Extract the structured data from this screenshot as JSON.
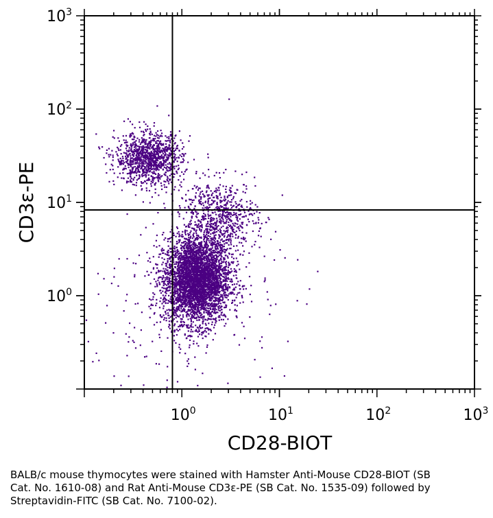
{
  "chart_data": {
    "type": "scatter",
    "title": "",
    "xlabel": "CD28-BIOT",
    "ylabel": "CD3ε-PE",
    "x_scale": "log",
    "y_scale": "log",
    "xlim": [
      0.1,
      1000
    ],
    "ylim": [
      0.1,
      1000
    ],
    "x_ticks": [
      {
        "base": "10",
        "exp": "0",
        "value": 1
      },
      {
        "base": "10",
        "exp": "1",
        "value": 10
      },
      {
        "base": "10",
        "exp": "2",
        "value": 100
      },
      {
        "base": "10",
        "exp": "3",
        "value": 1000
      }
    ],
    "y_ticks": [
      {
        "base": "10",
        "exp": "0",
        "value": 1
      },
      {
        "base": "10",
        "exp": "1",
        "value": 10
      },
      {
        "base": "10",
        "exp": "2",
        "value": 100
      },
      {
        "base": "10",
        "exp": "3",
        "value": 1000
      }
    ],
    "quadrant_gate": {
      "x": 0.8,
      "y": 8.3
    },
    "point_color": "#4b0082",
    "grid": false,
    "populations": [
      {
        "center": [
          1.4,
          1.5
        ],
        "spread_log10": [
          0.17,
          0.23
        ],
        "count": 3800
      },
      {
        "center": [
          0.45,
          30
        ],
        "spread_log10": [
          0.17,
          0.14
        ],
        "count": 1100
      },
      {
        "center": [
          2.3,
          7
        ],
        "spread_log10": [
          0.2,
          0.2
        ],
        "count": 700
      },
      {
        "center": [
          1.0,
          0.6
        ],
        "spread_log10": [
          0.5,
          0.55
        ],
        "count": 200
      }
    ],
    "outliers": [
      [
        20,
        1.2
      ],
      [
        12,
        0.33
      ],
      [
        15,
        0.9
      ],
      [
        8,
        0.8
      ],
      [
        6,
        4.5
      ],
      [
        0.12,
        0.2
      ],
      [
        0.15,
        40
      ],
      [
        0.13,
        55
      ],
      [
        3,
        130
      ],
      [
        0.55,
        110
      ],
      [
        0.2,
        2
      ],
      [
        0.25,
        0.7
      ],
      [
        0.5,
        6
      ],
      [
        1.6,
        0.15
      ],
      [
        7,
        1.5
      ]
    ]
  },
  "caption": "BALB/c mouse thymocytes were stained with Hamster Anti-Mouse CD28-BIOT (SB Cat. No. 1610-08) and Rat Anti-Mouse CD3ε-PE (SB Cat. No. 1535-09) followed by Streptavidin-FITC (SB Cat. No. 7100-02)."
}
